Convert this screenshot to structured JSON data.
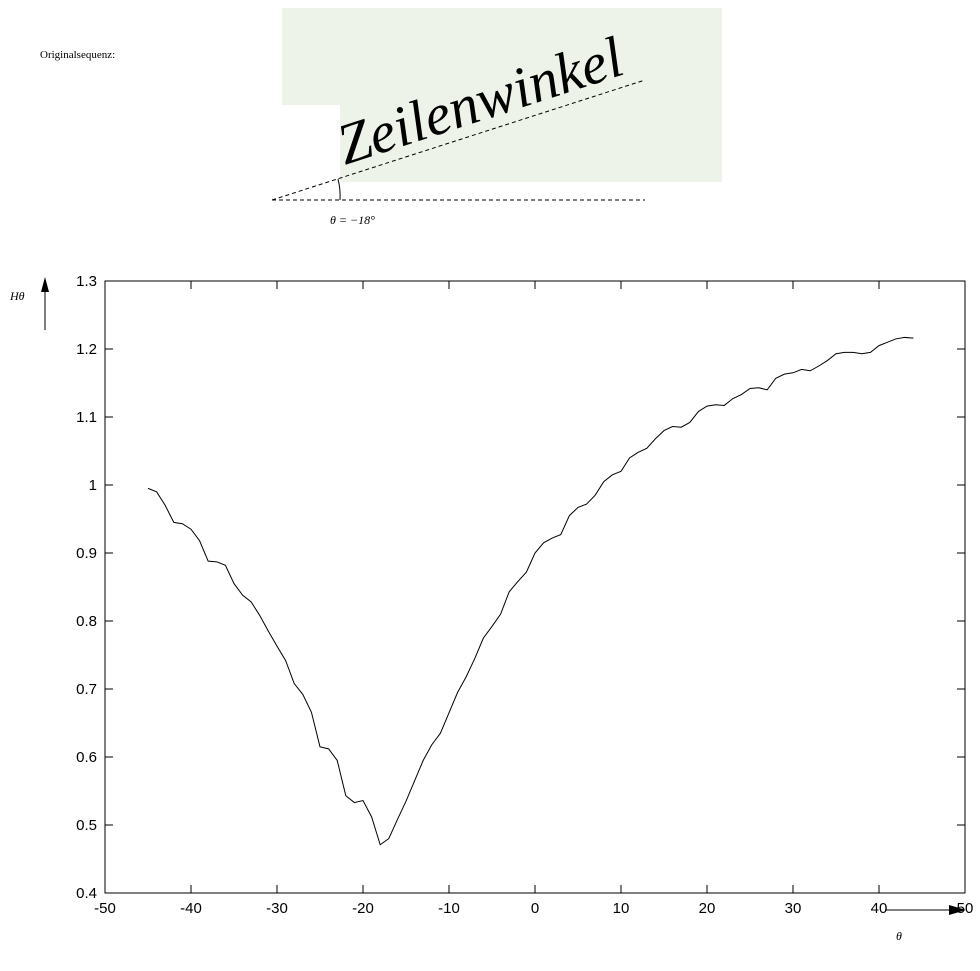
{
  "intro_label": "Originalsequenz:",
  "handwriting": "Zeilenwinkel",
  "angle_annotation": "θ = −18°",
  "chart_data": {
    "type": "line",
    "ylabel": "Hθ",
    "xlabel": "θ",
    "x": [
      -45,
      -44,
      -43,
      -42,
      -41,
      -40,
      -39,
      -38,
      -37,
      -36,
      -35,
      -34,
      -33,
      -32,
      -31,
      -30,
      -29,
      -28,
      -27,
      -26,
      -25,
      -24,
      -23,
      -22,
      -21,
      -20,
      -19,
      -18,
      -17,
      -16,
      -15,
      -14,
      -13,
      -12,
      -11,
      -10,
      -9,
      -8,
      -7,
      -6,
      -5,
      -4,
      -3,
      -2,
      -1,
      0,
      1,
      2,
      3,
      4,
      5,
      6,
      7,
      8,
      9,
      10,
      11,
      12,
      13,
      14,
      15,
      16,
      17,
      18,
      19,
      20,
      21,
      22,
      23,
      24,
      25,
      26,
      27,
      28,
      29,
      30,
      31,
      32,
      33,
      34,
      35,
      36,
      37,
      38,
      39,
      40,
      41,
      42,
      43,
      44
    ],
    "series": [
      {
        "color": "#000000",
        "values": [
          0.995,
          0.99,
          0.97,
          0.945,
          0.943,
          0.935,
          0.918,
          0.888,
          0.887,
          0.882,
          0.855,
          0.838,
          0.828,
          0.808,
          0.785,
          0.763,
          0.742,
          0.708,
          0.692,
          0.666,
          0.615,
          0.612,
          0.595,
          0.543,
          0.533,
          0.536,
          0.512,
          0.471,
          0.48,
          0.508,
          0.535,
          0.565,
          0.595,
          0.618,
          0.635,
          0.665,
          0.695,
          0.718,
          0.745,
          0.775,
          0.792,
          0.81,
          0.843,
          0.858,
          0.872,
          0.9,
          0.915,
          0.922,
          0.927,
          0.955,
          0.967,
          0.972,
          0.985,
          1.005,
          1.015,
          1.02,
          1.04,
          1.048,
          1.054,
          1.068,
          1.08,
          1.086,
          1.085,
          1.092,
          1.108,
          1.116,
          1.118,
          1.117,
          1.127,
          1.133,
          1.142,
          1.143,
          1.14,
          1.157,
          1.163,
          1.165,
          1.17,
          1.168,
          1.175,
          1.183,
          1.193,
          1.195,
          1.195,
          1.193,
          1.195,
          1.205,
          1.21,
          1.215,
          1.217,
          1.216
        ]
      }
    ],
    "xlim": [
      -50,
      50
    ],
    "xticks": [
      -50,
      -40,
      -30,
      -20,
      -10,
      0,
      10,
      20,
      30,
      40,
      50
    ],
    "ylim": [
      0.4,
      1.3
    ],
    "yticks": [
      0.4,
      0.5,
      0.6,
      0.7,
      0.8,
      0.9,
      1,
      1.1,
      1.2,
      1.3
    ]
  }
}
